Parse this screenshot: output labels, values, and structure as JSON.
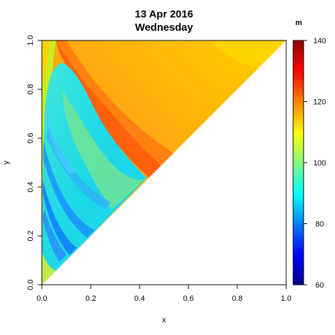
{
  "chart_data": {
    "type": "heatmap",
    "title": "13 Apr 2016",
    "subtitle": "Wednesday",
    "xlabel": "x",
    "ylabel": "y",
    "xlim": [
      0.0,
      1.0
    ],
    "ylim": [
      0.0,
      1.0
    ],
    "x_ticks": [
      "0.0",
      "0.2",
      "0.4",
      "0.6",
      "0.8",
      "1.0"
    ],
    "y_ticks": [
      "0.0",
      "0.2",
      "0.4",
      "0.6",
      "0.8",
      "1.0"
    ],
    "domain": "upper triangle y >= x, filled; region below diagonal empty",
    "colorbar": {
      "label": "m",
      "range": [
        60,
        140
      ],
      "ticks": [
        "60",
        "80",
        "100",
        "120",
        "140"
      ],
      "colors": [
        "#00008b",
        "#0000ff",
        "#0080ff",
        "#00ffff",
        "#80ff80",
        "#ffff00",
        "#ff8000",
        "#ff0000",
        "#8b0000"
      ]
    },
    "regions": [
      {
        "region": "left strip near x=0",
        "approx_value": 108
      },
      {
        "region": "inner cyan/green lobe x 0.02-0.4",
        "approx_value": 92
      },
      {
        "region": "blue streaks x 0.0-0.2, y 0.2-0.6",
        "approx_value": 85
      },
      {
        "region": "red band along lobe edge",
        "approx_value": 122
      },
      {
        "region": "upper right area",
        "approx_value": 117
      },
      {
        "region": "top-right corner near (1,1)",
        "approx_value": 111
      }
    ],
    "grid": false,
    "legend": "colorbar-right"
  }
}
